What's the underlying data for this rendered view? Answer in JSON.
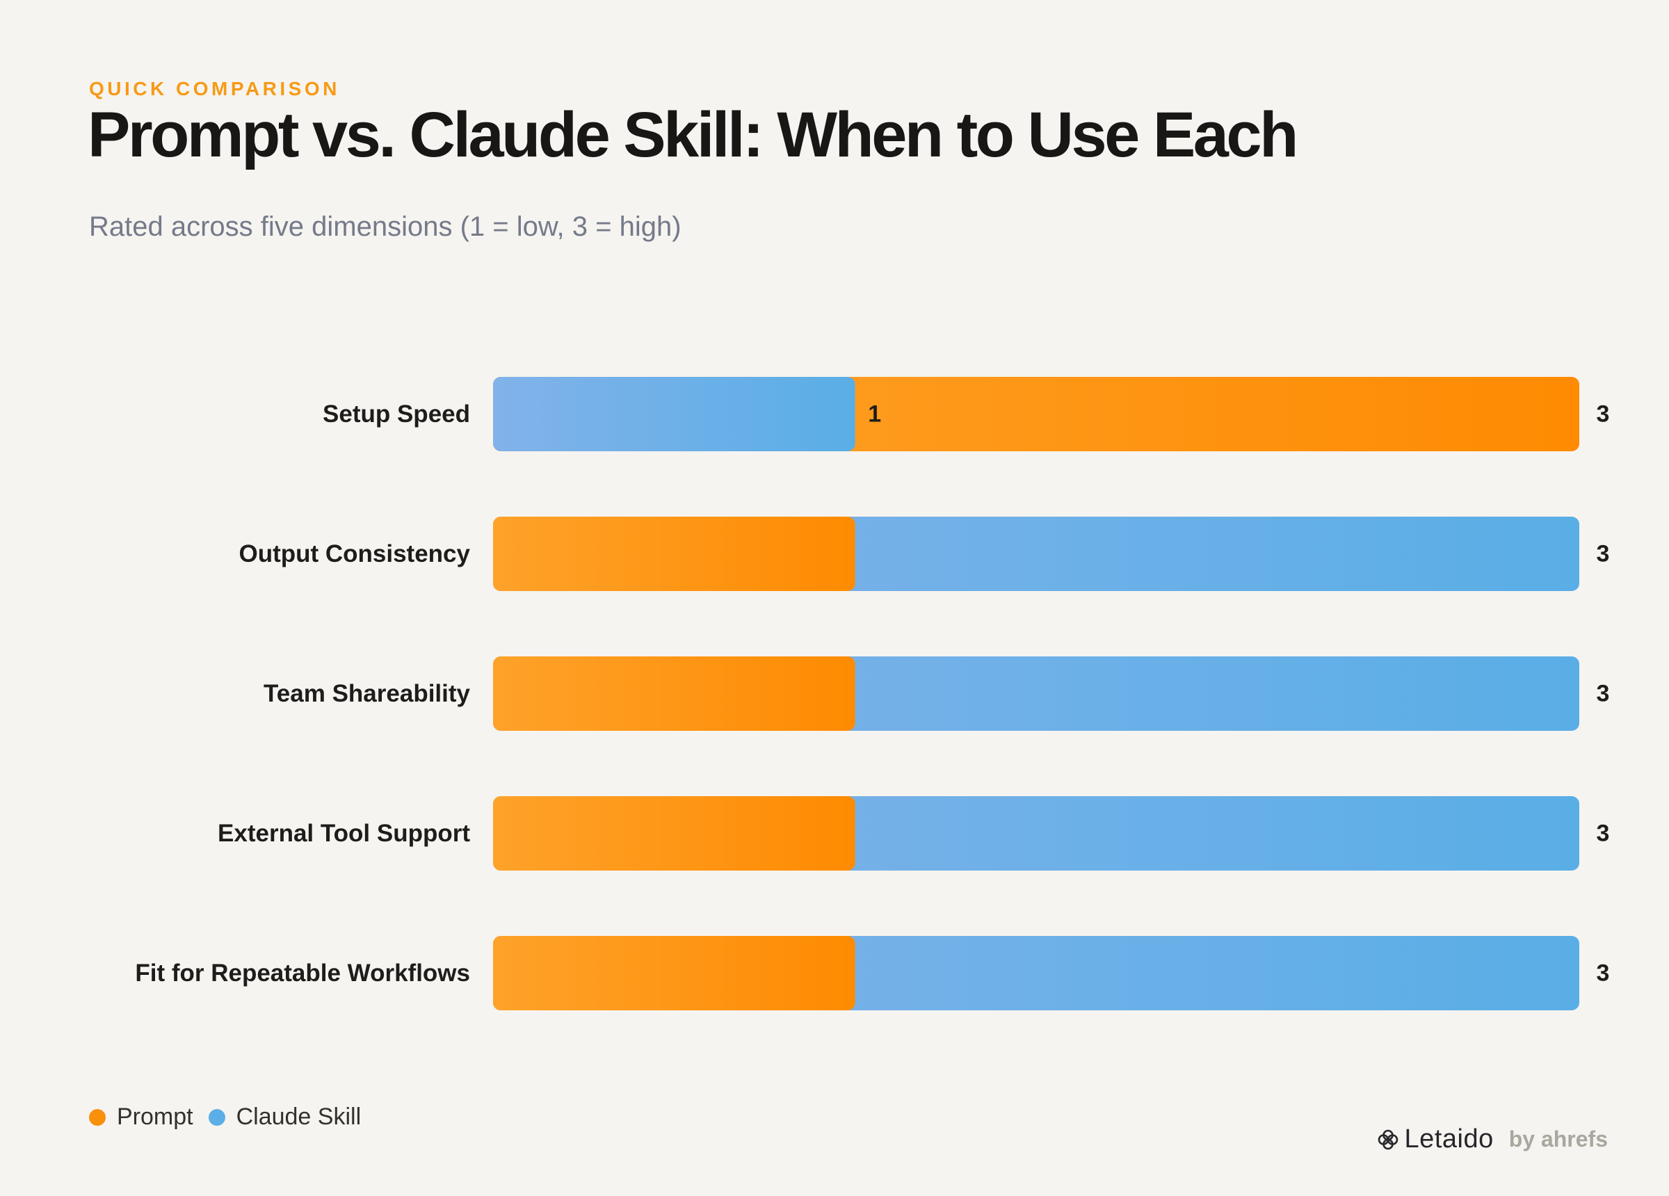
{
  "header": {
    "eyebrow": "QUICK COMPARISON",
    "title": "Prompt vs. Claude Skill: When to Use Each",
    "subtitle": "Rated across five dimensions (1 = low, 3 = high)"
  },
  "legend": [
    {
      "label": "Prompt",
      "color": "#f9900c"
    },
    {
      "label": "Claude Skill",
      "color": "#5bafe6"
    }
  ],
  "brand": {
    "name": "Letaido",
    "by": "by ahrefs"
  },
  "colors": {
    "prompt_start": "#fea22a",
    "prompt_end": "#fe8b02",
    "skill_start": "#82b2ea",
    "skill_end": "#5aaee6",
    "label_text": "#1e1d1b"
  },
  "chart_data": {
    "type": "bar",
    "orientation": "horizontal",
    "categories": [
      "Setup Speed",
      "Output Consistency",
      "Team Shareability",
      "External Tool Support",
      "Fit for Repeatable Workflows"
    ],
    "series": [
      {
        "name": "Prompt",
        "values": [
          3,
          1,
          1,
          1,
          1
        ]
      },
      {
        "name": "Claude Skill",
        "values": [
          1,
          3,
          3,
          3,
          3
        ]
      }
    ],
    "value_labels": [
      {
        "inner": "1",
        "outer": "3"
      },
      {
        "inner": "",
        "outer": "3"
      },
      {
        "inner": "",
        "outer": "3"
      },
      {
        "inner": "",
        "outer": "3"
      },
      {
        "inner": "",
        "outer": "3"
      }
    ],
    "xlim": [
      0,
      3
    ],
    "grid": false,
    "legend_position": "bottom-left"
  }
}
